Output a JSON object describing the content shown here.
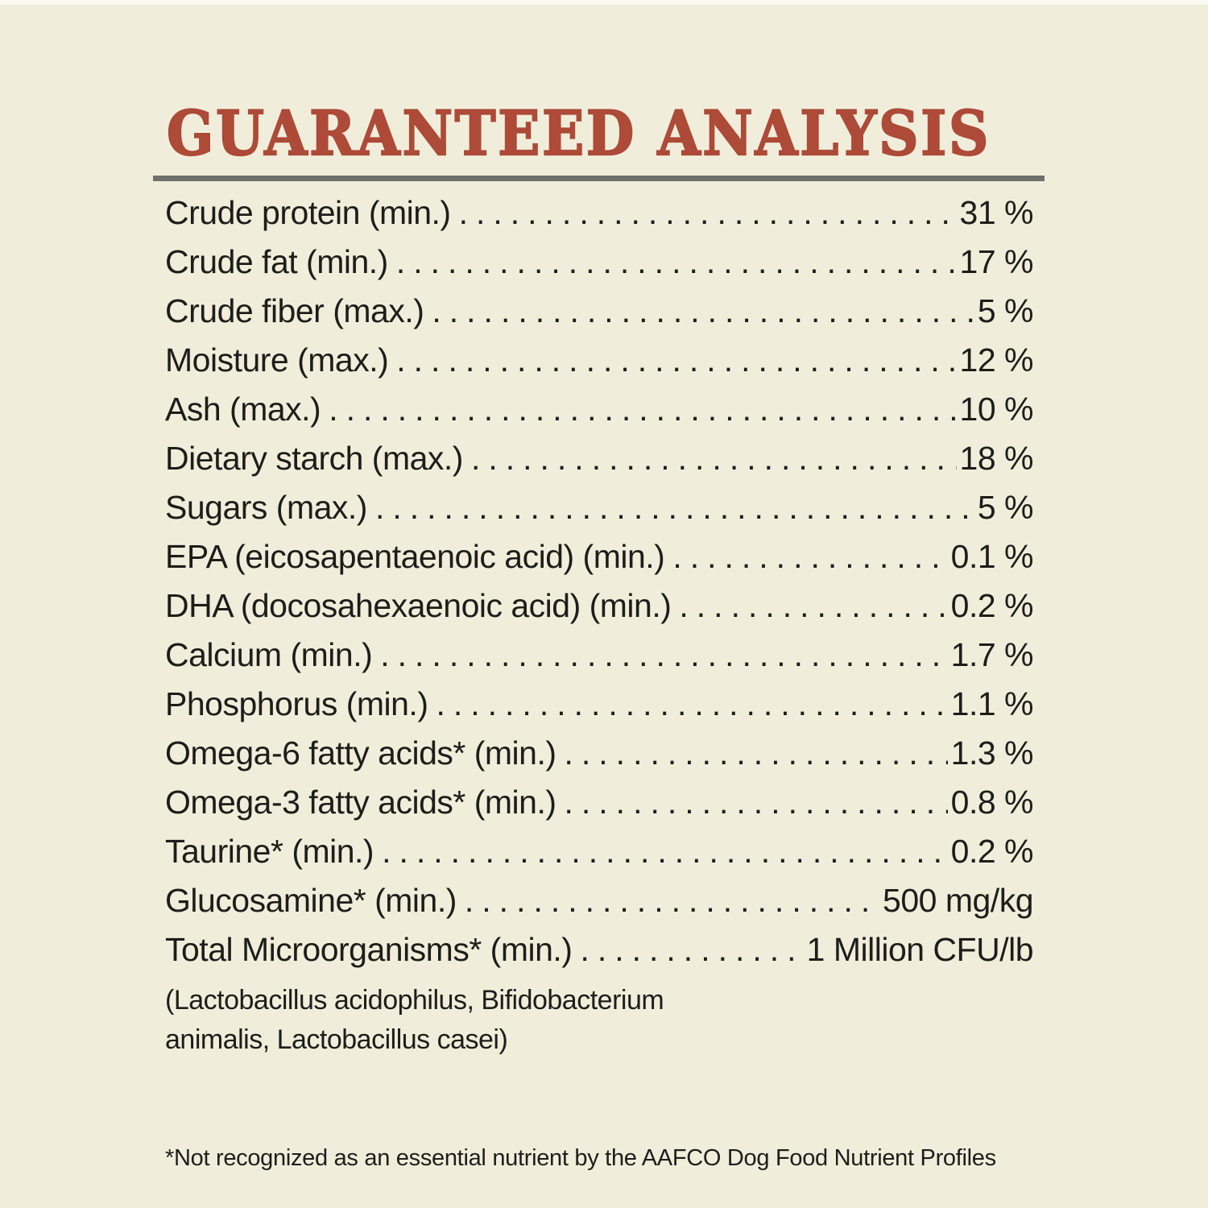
{
  "page": {
    "background_color": "#f0eedb",
    "title_color": "#ad4a38",
    "rule_color": "#70706c",
    "text_color": "#1e1d1a"
  },
  "header": {
    "title": "GUARANTEED ANALYSIS"
  },
  "analysis": {
    "rows": [
      {
        "label": "Crude protein (min.)",
        "value": "31 %"
      },
      {
        "label": "Crude fat (min.)",
        "value": "17 %"
      },
      {
        "label": "Crude fiber (max.)",
        "value": "5 %"
      },
      {
        "label": "Moisture (max.)",
        "value": "12 %"
      },
      {
        "label": "Ash (max.)",
        "value": "10 %"
      },
      {
        "label": "Dietary starch (max.)",
        "value": "18 %"
      },
      {
        "label": "Sugars (max.)",
        "value": "5 %"
      },
      {
        "label": "EPA (eicosapentaenoic acid) (min.)",
        "value": "0.1 %"
      },
      {
        "label": "DHA (docosahexaenoic acid) (min.)",
        "value": "0.2 %"
      },
      {
        "label": "Calcium (min.)",
        "value": "1.7 %"
      },
      {
        "label": "Phosphorus (min.)",
        "value": "1.1 %"
      },
      {
        "label": "Omega-6 fatty acids* (min.)",
        "value": "1.3 %"
      },
      {
        "label": "Omega-3 fatty acids* (min.)",
        "value": "0.8 %"
      },
      {
        "label": "Taurine* (min.)",
        "value": "0.2 %"
      },
      {
        "label": "Glucosamine* (min.)",
        "value": "500 mg/kg"
      },
      {
        "label": "Total Microorganisms* (min.)",
        "value": "1 Million CFU/lb"
      }
    ],
    "microorganisms_note": "(Lactobacillus acidophilus, Bifidobacterium animalis, Lactobacillus casei)"
  },
  "footnote": "*Not recognized as an essential nutrient by the AAFCO Dog Food Nutrient Profiles"
}
